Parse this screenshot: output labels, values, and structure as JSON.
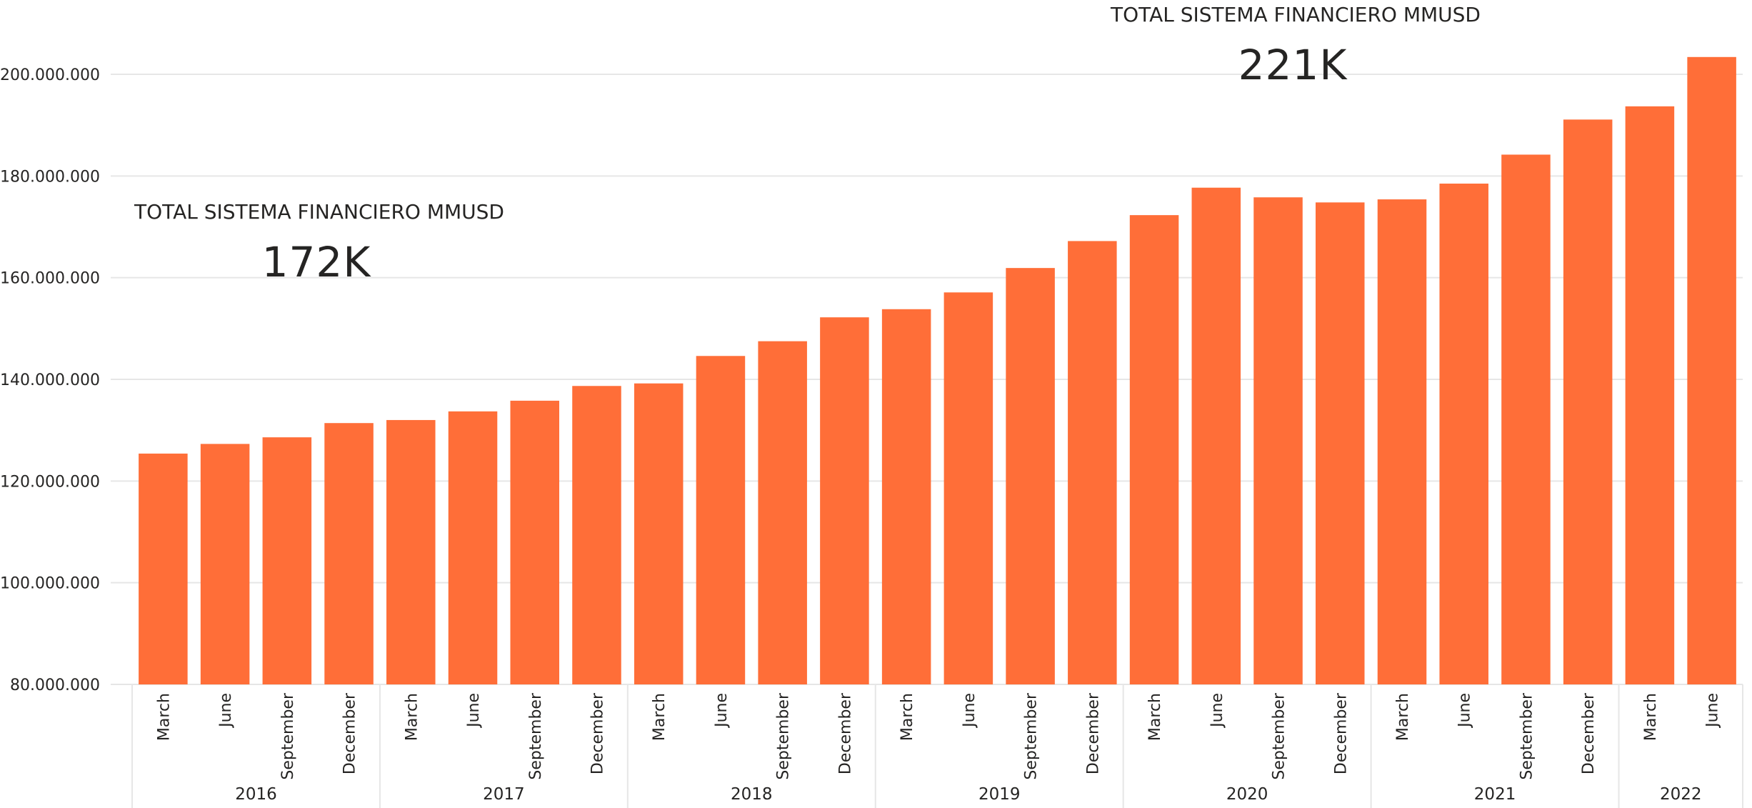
{
  "cards": [
    {
      "label": "TOTAL SISTEMA FINANCIERO MMUSD",
      "value": "172K"
    },
    {
      "label": "TOTAL SISTEMA FINANCIERO MMUSD",
      "value": "221K"
    }
  ],
  "colors": {
    "bar": "#FF6E38",
    "grid": "#E6E6E6",
    "text": "#252423",
    "axis_text": "#252423"
  },
  "chart_data": {
    "type": "bar",
    "title": "",
    "xlabel": "",
    "ylabel": "",
    "ylim": [
      80000000,
      203000000
    ],
    "yticks": [
      80000000,
      100000000,
      120000000,
      140000000,
      160000000,
      180000000,
      200000000
    ],
    "ytick_labels": [
      "80.000.000",
      "100.000.000",
      "120.000.000",
      "140.000.000",
      "160.000.000",
      "180.000.000",
      "200.000.000"
    ],
    "grid": true,
    "categories": [
      "March",
      "June",
      "September",
      "December",
      "March",
      "June",
      "September",
      "December",
      "March",
      "June",
      "September",
      "December",
      "March",
      "June",
      "September",
      "December",
      "March",
      "June",
      "September",
      "December",
      "March",
      "June",
      "September",
      "December",
      "March",
      "June"
    ],
    "years": [
      {
        "label": "2016",
        "count": 4
      },
      {
        "label": "2017",
        "count": 4
      },
      {
        "label": "2018",
        "count": 4
      },
      {
        "label": "2019",
        "count": 4
      },
      {
        "label": "2020",
        "count": 4
      },
      {
        "label": "2021",
        "count": 4
      },
      {
        "label": "2022",
        "count": 2
      }
    ],
    "values": [
      125400000,
      127300000,
      128600000,
      131400000,
      132000000,
      133700000,
      135800000,
      138700000,
      139200000,
      144600000,
      147500000,
      152200000,
      153800000,
      157100000,
      161900000,
      167200000,
      172300000,
      177700000,
      175800000,
      174800000,
      175400000,
      178500000,
      184200000,
      191100000,
      193700000,
      203400000
    ]
  }
}
